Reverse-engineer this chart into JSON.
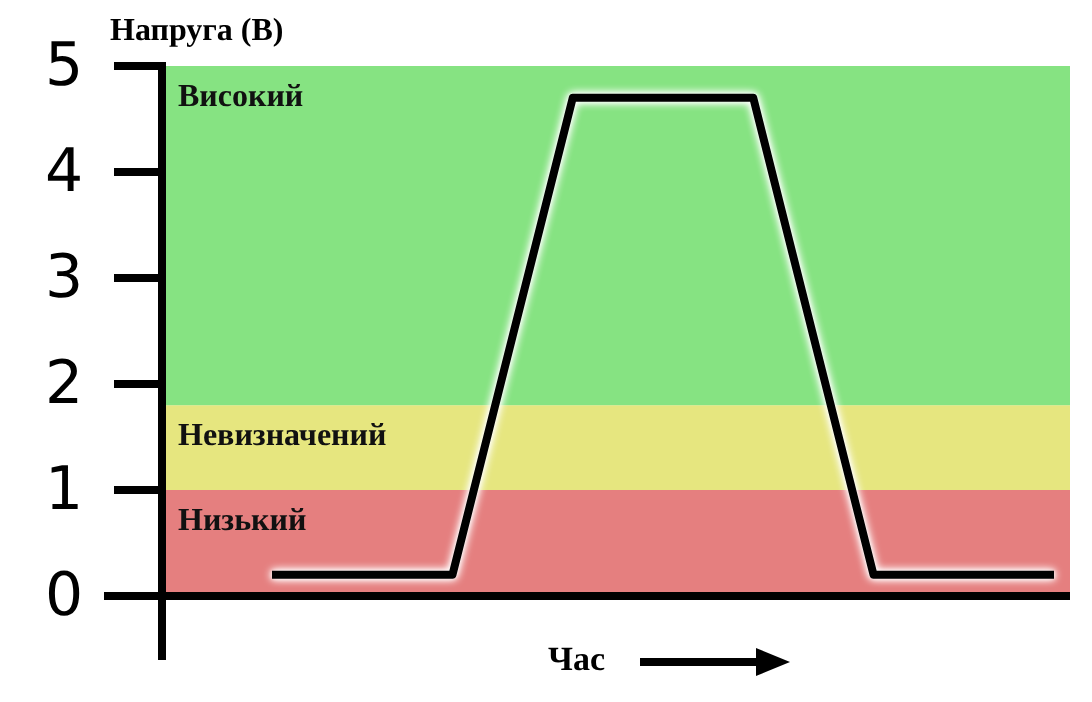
{
  "chart_data": {
    "type": "line",
    "ylabel": "Напруга (В)",
    "xlabel": "Час",
    "categories": [
      null,
      null,
      null,
      null,
      null,
      null,
      null,
      null,
      null,
      null,
      null,
      null,
      null,
      null
    ],
    "ylim": [
      0,
      5
    ],
    "yticks": [
      0,
      1,
      2,
      3,
      4,
      5
    ],
    "tick_labels": "y",
    "grid": false,
    "marker": "none",
    "line_style": "solid",
    "series": [
      {
        "color": "#000000",
        "values": [
          0.2,
          0.2,
          0.2,
          0.2,
          2.45,
          4.7,
          4.7,
          4.7,
          4.7,
          2.45,
          0.2,
          0.2,
          0.2,
          0.2
        ]
      }
    ],
    "bands": [
      {
        "axis": "y",
        "from": 0,
        "to": 1,
        "label": "Низький",
        "color": "#e57f7f"
      },
      {
        "axis": "y",
        "from": 1,
        "to": 1.8,
        "label": "Невизначений",
        "color": "#e6e67f"
      },
      {
        "axis": "y",
        "from": 1.8,
        "to": 5,
        "label": "Високий",
        "color": "#86e382"
      }
    ]
  }
}
